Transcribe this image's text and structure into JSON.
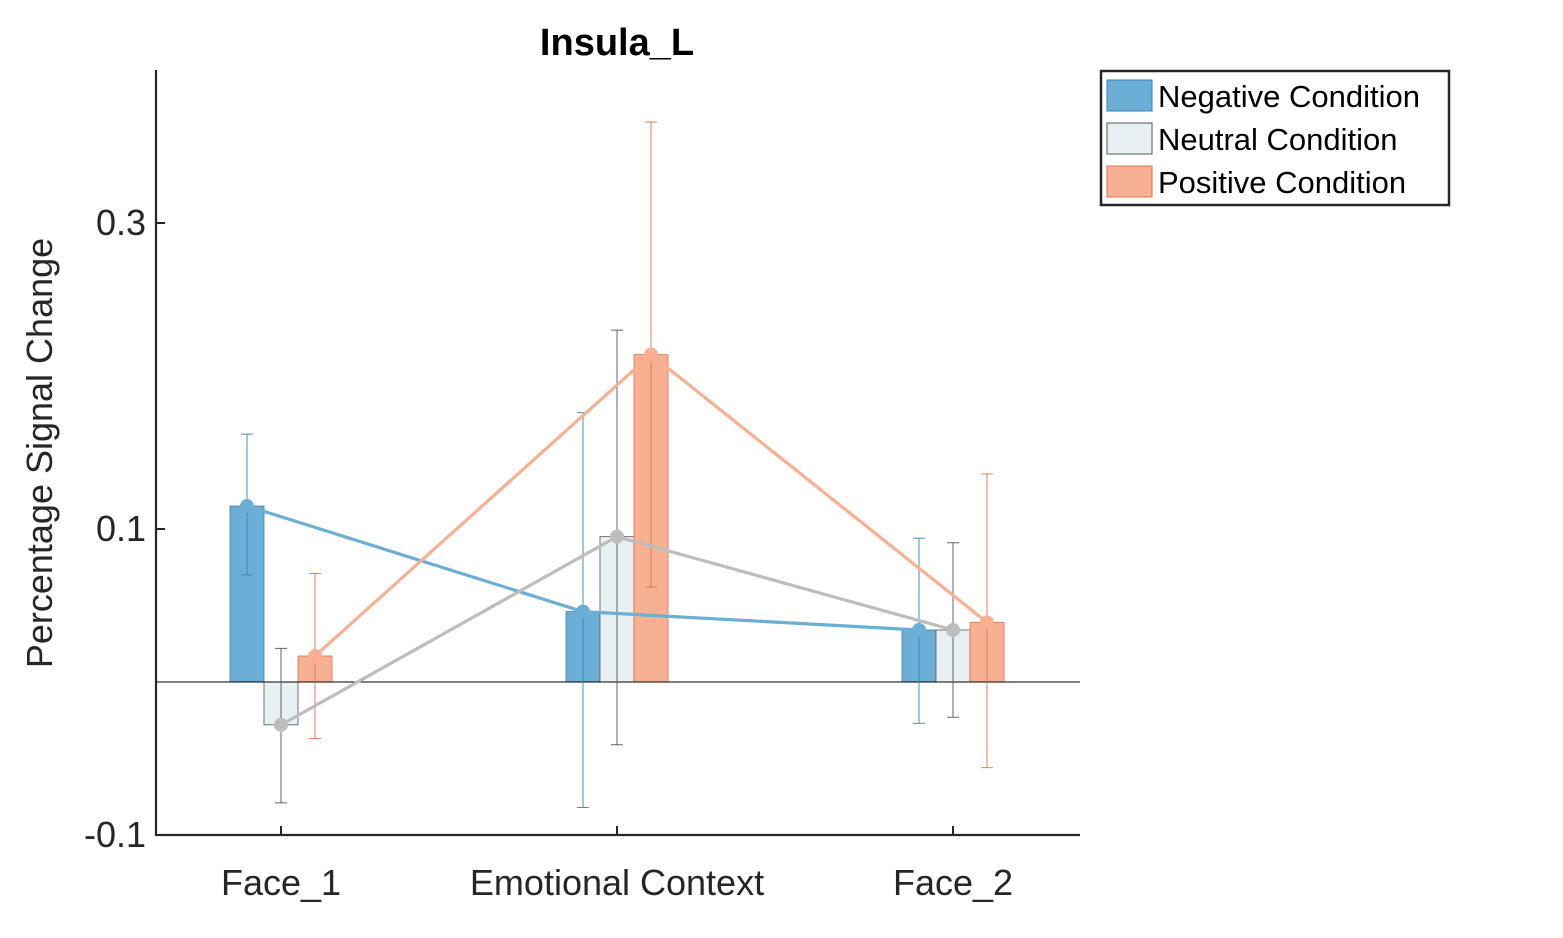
{
  "chart_data": {
    "type": "bar",
    "title": "Insula_L",
    "xlabel": "",
    "ylabel": "Percentage Signal Change",
    "ylim": [
      -0.1,
      0.4
    ],
    "yticks": [
      -0.1,
      0.1,
      0.3
    ],
    "ytick_labels": [
      "-0.1",
      "0.1",
      "0.3"
    ],
    "categories": [
      "Face_1",
      "Emotional Context",
      "Face_2"
    ],
    "grid": false,
    "legend_position": "outside-top-right",
    "overlay": "lines connecting bar tops per series",
    "series": [
      {
        "name": "Negative Condition",
        "bar_color": "#6baed6",
        "edge_color": "#3a7fb5",
        "line_color": "#6baed6",
        "values": [
          0.115,
          0.046,
          0.034
        ],
        "err_low": [
          0.07,
          -0.082,
          -0.027
        ],
        "err_high": [
          0.162,
          0.176,
          0.094
        ]
      },
      {
        "name": "Neutral Condition",
        "bar_color": "#e8f0f3",
        "edge_color": "#555555",
        "line_color": "#bdbdbd",
        "values": [
          -0.028,
          0.095,
          0.034
        ],
        "err_low": [
          -0.079,
          -0.041,
          -0.023
        ],
        "err_high": [
          0.022,
          0.23,
          0.091
        ]
      },
      {
        "name": "Positive Condition",
        "bar_color": "#f7b091",
        "edge_color": "#d9744e",
        "line_color": "#f7b091",
        "values": [
          0.017,
          0.214,
          0.039
        ],
        "err_low": [
          -0.037,
          0.062,
          -0.056
        ],
        "err_high": [
          0.071,
          0.366,
          0.136
        ]
      }
    ]
  }
}
